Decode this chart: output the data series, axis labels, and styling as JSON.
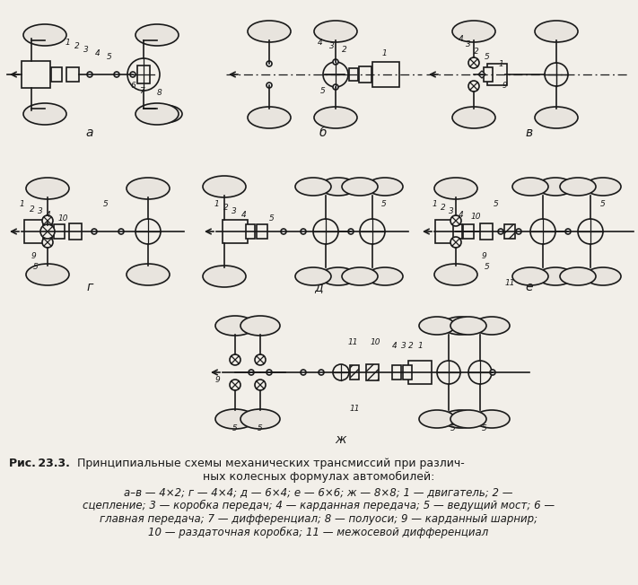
{
  "bg_color": "#f2efe9",
  "dc": "#1a1a1a",
  "title_bold": "Рис. 23.3.",
  "title_rest": " Принципиальные схемы механических трансмиссий при различ-",
  "title_line2": "ных колесных формулах автомобилей:",
  "cap1": "а–в — 4×2; г — 4×4; д — 6×4; е — 6×6; ж — 8×8; 1 — двигатель; 2 —",
  "cap2": "сцепление; 3 — коробка передач; 4 — карданная передача; 5 — ведущий мост; 6 —",
  "cap3": "главная передача; 7 — дифференциал; 8 — полуоси; 9 — карданный шарнир;",
  "cap4": "10 — раздаточная коробка; 11 — межосевой дифференциал",
  "label_a": "а",
  "label_b": "б",
  "label_v": "в",
  "label_g": "г",
  "label_d": "д",
  "label_e": "е",
  "label_zh": "ж"
}
